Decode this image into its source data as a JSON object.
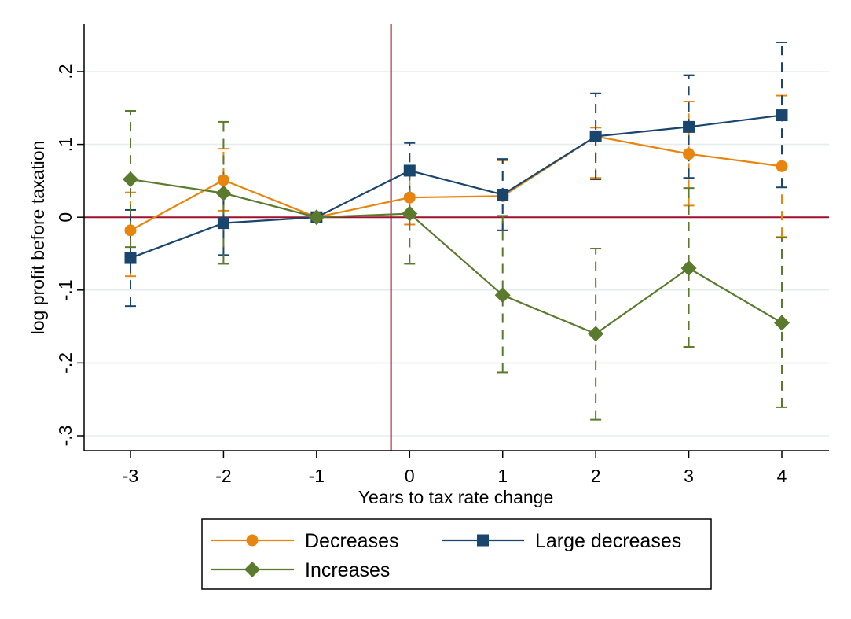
{
  "chart_data": {
    "type": "line",
    "xlabel": "Years to tax rate change",
    "ylabel": "log profit before taxation",
    "x": [
      -3,
      -2,
      -1,
      0,
      1,
      2,
      3,
      4
    ],
    "xticks": [
      -3,
      -2,
      -1,
      0,
      1,
      2,
      3,
      4
    ],
    "xtick_labels": [
      "-3",
      "-2",
      "-1",
      "0",
      "1",
      "2",
      "3",
      "4"
    ],
    "xlim": [
      -3.5,
      4.5
    ],
    "yticks": [
      -0.3,
      -0.2,
      -0.1,
      0,
      0.1,
      0.2
    ],
    "ytick_labels": [
      "-.3",
      "-.2",
      "-.1",
      "0",
      ".1",
      ".2"
    ],
    "ylim": [
      -0.32,
      0.27
    ],
    "grid": true,
    "reference_lines": {
      "x": -0.2,
      "y": 0,
      "color": "#a0102e"
    },
    "legend_position": "bottom",
    "series": [
      {
        "name": "Decreases",
        "color": "#e8850e",
        "marker": "circle",
        "values": [
          -0.018,
          0.051,
          0,
          0.027,
          0.029,
          0.111,
          0.087,
          0.07
        ],
        "ci_low": [
          -0.081,
          0.009,
          null,
          -0.01,
          -0.018,
          0.054,
          0.016,
          -0.027
        ],
        "ci_high": [
          0.034,
          0.094,
          null,
          0.065,
          0.078,
          0.123,
          0.159,
          0.167
        ]
      },
      {
        "name": "Large decreases",
        "color": "#1a456d",
        "marker": "square",
        "values": [
          -0.056,
          -0.008,
          0,
          0.064,
          0.031,
          0.111,
          0.124,
          0.14
        ],
        "ci_low": [
          -0.122,
          -0.052,
          null,
          0.03,
          -0.018,
          0.052,
          0.054,
          0.041
        ],
        "ci_high": [
          0.01,
          0.035,
          null,
          0.102,
          0.08,
          0.17,
          0.195,
          0.24
        ]
      },
      {
        "name": "Increases",
        "color": "#5a7a2e",
        "marker": "diamond",
        "values": [
          0.052,
          0.033,
          0,
          0.005,
          -0.107,
          -0.16,
          -0.07,
          -0.145
        ],
        "ci_low": [
          -0.041,
          -0.064,
          null,
          -0.064,
          -0.213,
          -0.278,
          -0.178,
          -0.261
        ],
        "ci_high": [
          0.146,
          0.131,
          null,
          0.07,
          0.002,
          -0.043,
          0.04,
          -0.028
        ]
      }
    ]
  }
}
